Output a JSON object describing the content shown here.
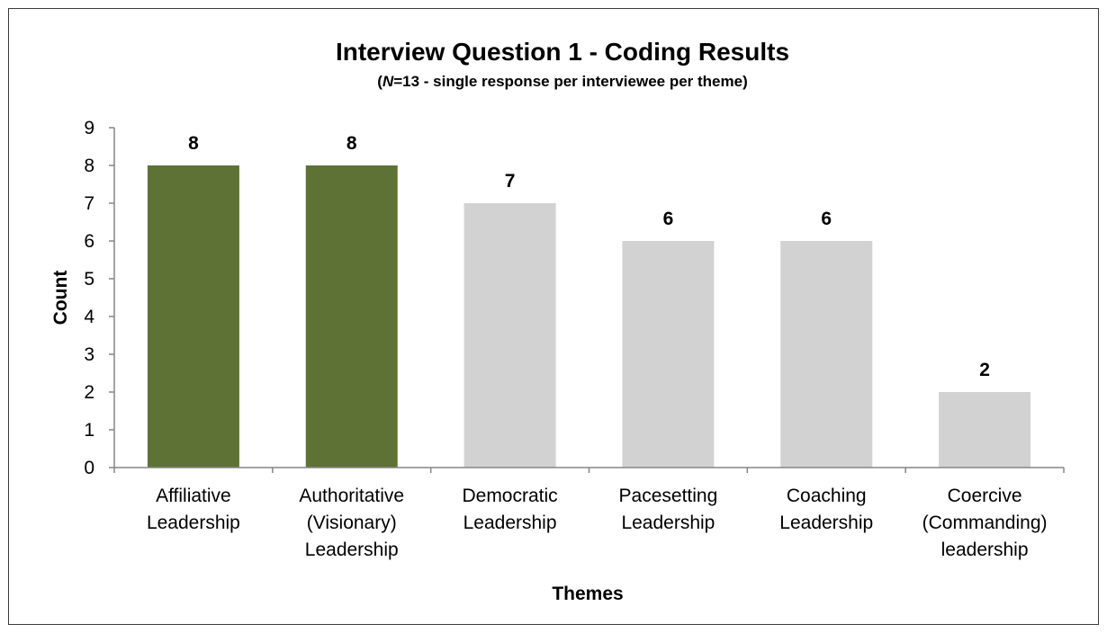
{
  "chart_data": {
    "type": "bar",
    "title": "Interview Question 1 - Coding Results",
    "subtitle": {
      "open": "(",
      "italic": "N",
      "rest": "=13 - single response per interviewee per theme)"
    },
    "xlabel": "Themes",
    "ylabel": "Count",
    "ylim": [
      0,
      9
    ],
    "yticks": [
      0,
      1,
      2,
      3,
      4,
      5,
      6,
      7,
      8,
      9
    ],
    "grid": false,
    "legend": "none",
    "categories": [
      [
        "Affiliative",
        "Leadership"
      ],
      [
        "Authoritative",
        "(Visionary)",
        "Leadership"
      ],
      [
        "Democratic",
        "Leadership"
      ],
      [
        "Pacesetting",
        "Leadership"
      ],
      [
        "Coaching",
        "Leadership"
      ],
      [
        "Coercive",
        "(Commanding)",
        "leadership"
      ]
    ],
    "values": [
      8,
      8,
      7,
      6,
      6,
      2
    ],
    "data_labels": [
      "8",
      "8",
      "7",
      "6",
      "6",
      "2"
    ],
    "colors": [
      "#5f7236",
      "#5f7236",
      "#d2d2d2",
      "#d2d2d2",
      "#d2d2d2",
      "#d2d2d2"
    ],
    "axis_color": "#868686"
  }
}
